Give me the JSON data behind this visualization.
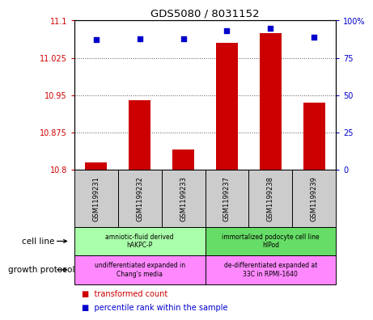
{
  "title": "GDS5080 / 8031152",
  "samples": [
    "GSM1199231",
    "GSM1199232",
    "GSM1199233",
    "GSM1199237",
    "GSM1199238",
    "GSM1199239"
  ],
  "transformed_count": [
    10.815,
    10.94,
    10.84,
    11.055,
    11.075,
    10.935
  ],
  "percentile_rank": [
    87,
    88,
    88,
    93,
    95,
    89
  ],
  "ylim_left": [
    10.8,
    11.1
  ],
  "ylim_right": [
    0,
    100
  ],
  "yticks_left": [
    10.8,
    10.875,
    10.95,
    11.025,
    11.1
  ],
  "yticks_right": [
    0,
    25,
    50,
    75,
    100
  ],
  "ytick_labels_left": [
    "10.8",
    "10.875",
    "10.95",
    "11.025",
    "11.1"
  ],
  "ytick_labels_right": [
    "0",
    "25",
    "50",
    "75",
    "100%"
  ],
  "cell_line_groups": [
    {
      "label": "amniotic-fluid derived\nhAKPC-P",
      "start": 0,
      "end": 3,
      "color": "#aaffaa"
    },
    {
      "label": "immortalized podocyte cell line\nhIPod",
      "start": 3,
      "end": 6,
      "color": "#66dd66"
    }
  ],
  "growth_protocol_groups": [
    {
      "label": "undifferentiated expanded in\nChang's media",
      "start": 0,
      "end": 3,
      "color": "#ff88ff"
    },
    {
      "label": "de-differentiated expanded at\n33C in RPMI-1640",
      "start": 3,
      "end": 6,
      "color": "#ff88ff"
    }
  ],
  "bar_color": "#cc0000",
  "dot_color": "#0000cc",
  "bar_baseline": 10.8,
  "grid_color": "#555555",
  "axis_label_color_left": "#cc0000",
  "axis_label_color_right": "#0000cc",
  "sample_box_color": "#cccccc",
  "legend_items": [
    {
      "color": "#cc0000",
      "label": "transformed count"
    },
    {
      "color": "#0000cc",
      "label": "percentile rank within the sample"
    }
  ]
}
